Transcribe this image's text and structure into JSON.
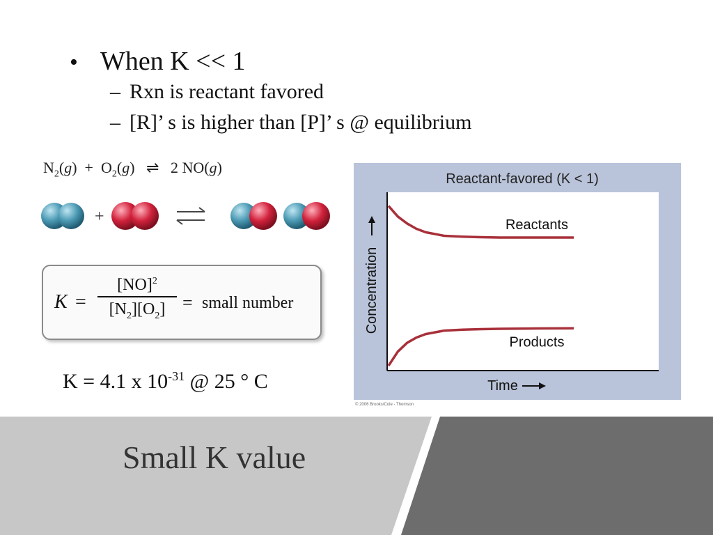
{
  "bullets": {
    "main": "When K << 1",
    "subs": [
      "Rxn is reactant favored",
      "[R]’ s is higher than [P]’ s @ equilibrium"
    ]
  },
  "reaction": {
    "n2": "N",
    "n2_sub": "2",
    "g": "g",
    "plus": "+",
    "o2": "O",
    "o2_sub": "2",
    "arrow": "⇌",
    "product": "2 NO",
    "product_phase": "g"
  },
  "k_expression": {
    "k": "K",
    "equals": "=",
    "numerator": "[NO]",
    "numerator_sup": "2",
    "den_1": "[N",
    "den_1_sub": "2",
    "den_2": "][O",
    "den_2_sub": "2",
    "den_3": "]",
    "equals2": "=",
    "result": "small number"
  },
  "k_value": {
    "prefix": "K = 4.1 x 10",
    "exp": "-31",
    "suffix": " @ 25 ° C"
  },
  "chart_data": {
    "type": "line",
    "title": "Reactant-favored (K < 1)",
    "xlabel": "Time",
    "ylabel": "Concentration",
    "x": [
      0,
      0.05,
      0.1,
      0.15,
      0.2,
      0.3,
      0.4,
      0.5,
      0.6,
      0.8,
      1.0
    ],
    "series": [
      {
        "name": "Reactants",
        "values": [
          0.93,
          0.87,
          0.83,
          0.8,
          0.78,
          0.76,
          0.755,
          0.752,
          0.75,
          0.75,
          0.75
        ],
        "color": "#a8303a"
      },
      {
        "name": "Products",
        "values": [
          0.02,
          0.1,
          0.15,
          0.18,
          0.2,
          0.22,
          0.225,
          0.228,
          0.23,
          0.232,
          0.233
        ],
        "color": "#a8303a"
      }
    ],
    "xlim": [
      0,
      1
    ],
    "ylim": [
      0,
      1
    ]
  },
  "chart_footer": "© 2006 Brooks/Cole - Thomson",
  "title": "Small K value",
  "colors": {
    "band_light": "#c8c7c7",
    "band_dark": "#6d6d6d",
    "curve": "#a8303a",
    "chart_bg": "#b9c3d9",
    "n2_atom": "#4c9ab4",
    "o2_atom": "#d1223c"
  }
}
